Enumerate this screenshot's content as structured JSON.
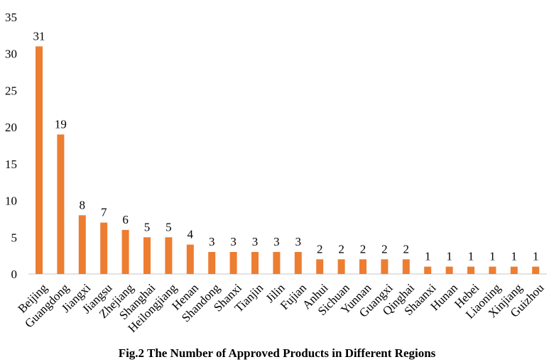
{
  "chart_data": {
    "type": "bar",
    "title": "Fig.2 The Number of Approved Products in Different Regions",
    "xlabel": "",
    "ylabel": "",
    "categories": [
      "Beijing",
      "Guangdong",
      "Jiangxi",
      "Jiangsu",
      "Zhejiang",
      "Shanghai",
      "Heilongjiang",
      "Henan",
      "Shandong",
      "Shanxi",
      "Tianjin",
      "Jilin",
      "Fujian",
      "Anhui",
      "Sichuan",
      "Yunnan",
      "Guangxi",
      "Qinghai",
      "Shaanxi",
      "Hunan",
      "Hebei",
      "Liaoning",
      "Xinjiang",
      "Guizhou"
    ],
    "values": [
      31,
      19,
      8,
      7,
      6,
      5,
      5,
      4,
      3,
      3,
      3,
      3,
      3,
      2,
      2,
      2,
      2,
      2,
      1,
      1,
      1,
      1,
      1,
      1
    ],
    "ylim": [
      0,
      35
    ],
    "yticks": [
      0,
      5,
      10,
      15,
      20,
      25,
      30,
      35
    ],
    "grid": false,
    "data_labels": true,
    "bar_color": "#ED7D31"
  }
}
